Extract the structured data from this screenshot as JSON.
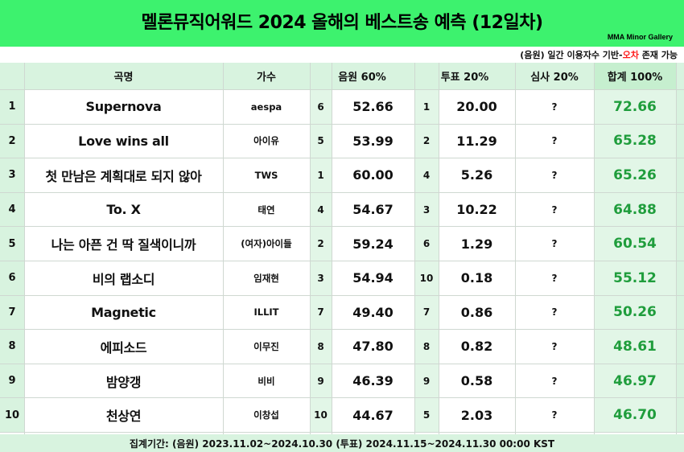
{
  "title": "멜론뮤직어워드 2024 올해의 베스트송 예측 (12일차)",
  "credit": "MMA Minor Gallery",
  "subnote": {
    "prefix": "(음원) 일간 이용자수 기반-",
    "highlight": "오차",
    "suffix": " 존재 가능"
  },
  "headers": {
    "song": "곡명",
    "artist": "가수",
    "melon": "음원 60%",
    "vote": "투표 20%",
    "judge": "심사 20%",
    "total": "합계 100%"
  },
  "rows": [
    {
      "rank": "1",
      "song": "Supernova",
      "artist": "aespa",
      "melon_rank": "6",
      "melon_score": "52.66",
      "vote_rank": "1",
      "vote_score": "20.00",
      "judge": "?",
      "total": "72.66"
    },
    {
      "rank": "2",
      "song": "Love wins all",
      "artist": "아이유",
      "melon_rank": "5",
      "melon_score": "53.99",
      "vote_rank": "2",
      "vote_score": "11.29",
      "judge": "?",
      "total": "65.28"
    },
    {
      "rank": "3",
      "song": "첫 만남은 계획대로 되지 않아",
      "artist": "TWS",
      "melon_rank": "1",
      "melon_score": "60.00",
      "vote_rank": "4",
      "vote_score": "5.26",
      "judge": "?",
      "total": "65.26"
    },
    {
      "rank": "4",
      "song": "To. X",
      "artist": "태연",
      "melon_rank": "4",
      "melon_score": "54.67",
      "vote_rank": "3",
      "vote_score": "10.22",
      "judge": "?",
      "total": "64.88"
    },
    {
      "rank": "5",
      "song": "나는 아픈 건 딱 질색이니까",
      "artist": "(여자)아이들",
      "melon_rank": "2",
      "melon_score": "59.24",
      "vote_rank": "6",
      "vote_score": "1.29",
      "judge": "?",
      "total": "60.54"
    },
    {
      "rank": "6",
      "song": "비의 랩소디",
      "artist": "임재현",
      "melon_rank": "3",
      "melon_score": "54.94",
      "vote_rank": "10",
      "vote_score": "0.18",
      "judge": "?",
      "total": "55.12"
    },
    {
      "rank": "7",
      "song": "Magnetic",
      "artist": "ILLIT",
      "melon_rank": "7",
      "melon_score": "49.40",
      "vote_rank": "7",
      "vote_score": "0.86",
      "judge": "?",
      "total": "50.26"
    },
    {
      "rank": "8",
      "song": "에피소드",
      "artist": "이무진",
      "melon_rank": "8",
      "melon_score": "47.80",
      "vote_rank": "8",
      "vote_score": "0.82",
      "judge": "?",
      "total": "48.61"
    },
    {
      "rank": "9",
      "song": "밤양갱",
      "artist": "비비",
      "melon_rank": "9",
      "melon_score": "46.39",
      "vote_rank": "9",
      "vote_score": "0.58",
      "judge": "?",
      "total": "46.97"
    },
    {
      "rank": "10",
      "song": "천상연",
      "artist": "이창섭",
      "melon_rank": "10",
      "melon_score": "44.67",
      "vote_rank": "5",
      "vote_score": "2.03",
      "judge": "?",
      "total": "46.70"
    }
  ],
  "footer": "집계기간: (음원) 2023.11.02~2024.10.30  (투표) 2024.11.15~2024.11.30 00:00 KST",
  "colors": {
    "header_green": "#3df26e",
    "total_text": "#1f9d3c",
    "pale_green": "#d8f3df",
    "highlight_red": "#ff1a1a"
  }
}
